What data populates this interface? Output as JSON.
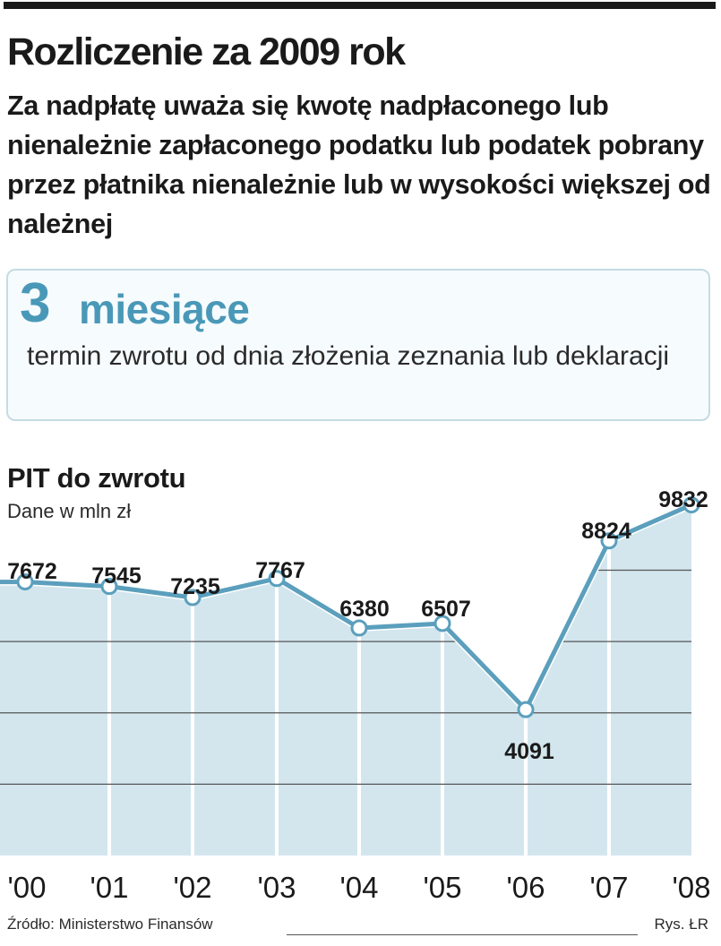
{
  "header": {
    "title": "Rozliczenie za 2009 rok",
    "lead": "Za nadpłatę uważa się kwotę nadpłaconego lub nienależnie zapłaconego podatku lub podatek pobrany przez płatnika nienależnie lub w wysokości większej od należnej"
  },
  "info_box": {
    "number": "3",
    "unit": "miesiące",
    "description": "termin zwrotu od dnia złożenia zeznania lub deklaracji"
  },
  "chart_data": {
    "type": "area",
    "title": "PIT do zwrotu",
    "subtitle": "Dane w mln zł",
    "categories": [
      "'00",
      "'01",
      "'02",
      "'03",
      "'04",
      "'05",
      "'06",
      "'07",
      "'08"
    ],
    "values": [
      7672,
      7545,
      7235,
      7767,
      6380,
      6507,
      4091,
      8824,
      9832
    ],
    "data_labels": [
      "7672",
      "7545",
      "7235",
      "7767",
      "6380",
      "6507",
      "4091",
      "8824",
      "9832"
    ],
    "ylim": [
      0,
      10500
    ],
    "grid": true,
    "colors": {
      "line": "#5b9fbd",
      "fill": "#d3e6ee",
      "marker_fill": "#ffffff",
      "grid": "#555555"
    }
  },
  "footer": {
    "source": "Źródło: Ministerstwo Finansów",
    "credit": "Rys. ŁR"
  }
}
